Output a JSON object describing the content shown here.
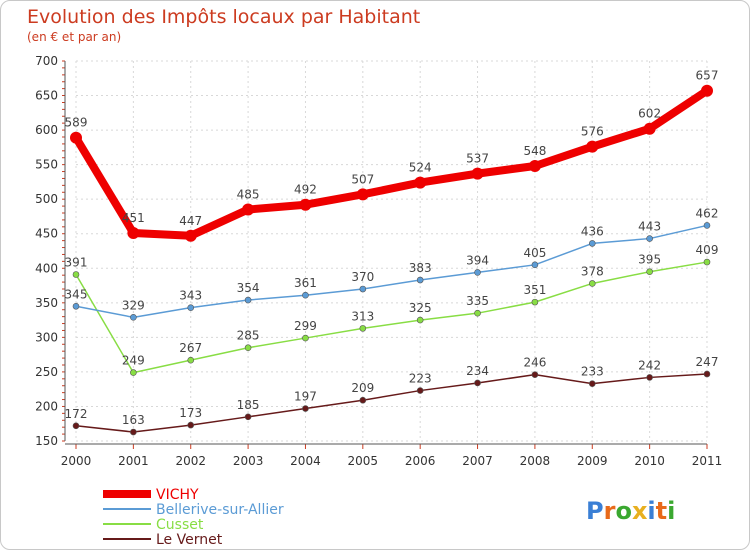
{
  "chart_data": {
    "type": "line",
    "title": "Evolution des Impôts locaux par Habitant",
    "subtitle": "(en € et par an)",
    "x": [
      "2000",
      "2001",
      "2002",
      "2003",
      "2004",
      "2005",
      "2006",
      "2007",
      "2008",
      "2009",
      "2010",
      "2011"
    ],
    "yticks": [
      "150",
      "200",
      "250",
      "300",
      "350",
      "400",
      "450",
      "500",
      "550",
      "600",
      "650",
      "700"
    ],
    "ylim": [
      150,
      700
    ],
    "series": [
      {
        "name": "VICHY",
        "color": "#ee0000",
        "values": [
          589,
          451,
          447,
          485,
          492,
          507,
          524,
          537,
          548,
          576,
          602,
          657
        ]
      },
      {
        "name": "Bellerive-sur-Allier",
        "color": "#5b9bd5",
        "values": [
          345,
          329,
          343,
          354,
          361,
          370,
          383,
          394,
          405,
          436,
          443,
          462
        ]
      },
      {
        "name": "Cusset",
        "color": "#88dd44",
        "values": [
          391,
          249,
          267,
          285,
          299,
          313,
          325,
          335,
          351,
          378,
          395,
          409
        ]
      },
      {
        "name": "Le Vernet",
        "color": "#661a1a",
        "values": [
          172,
          163,
          173,
          185,
          197,
          209,
          223,
          234,
          246,
          233,
          242,
          247
        ]
      }
    ]
  },
  "brand": "Proxiti",
  "brand_colors": [
    "#3a7fd5",
    "#e86a1a",
    "#3aa830",
    "#e8b020",
    "#3a7fd5",
    "#e86a1a",
    "#3aa830"
  ]
}
